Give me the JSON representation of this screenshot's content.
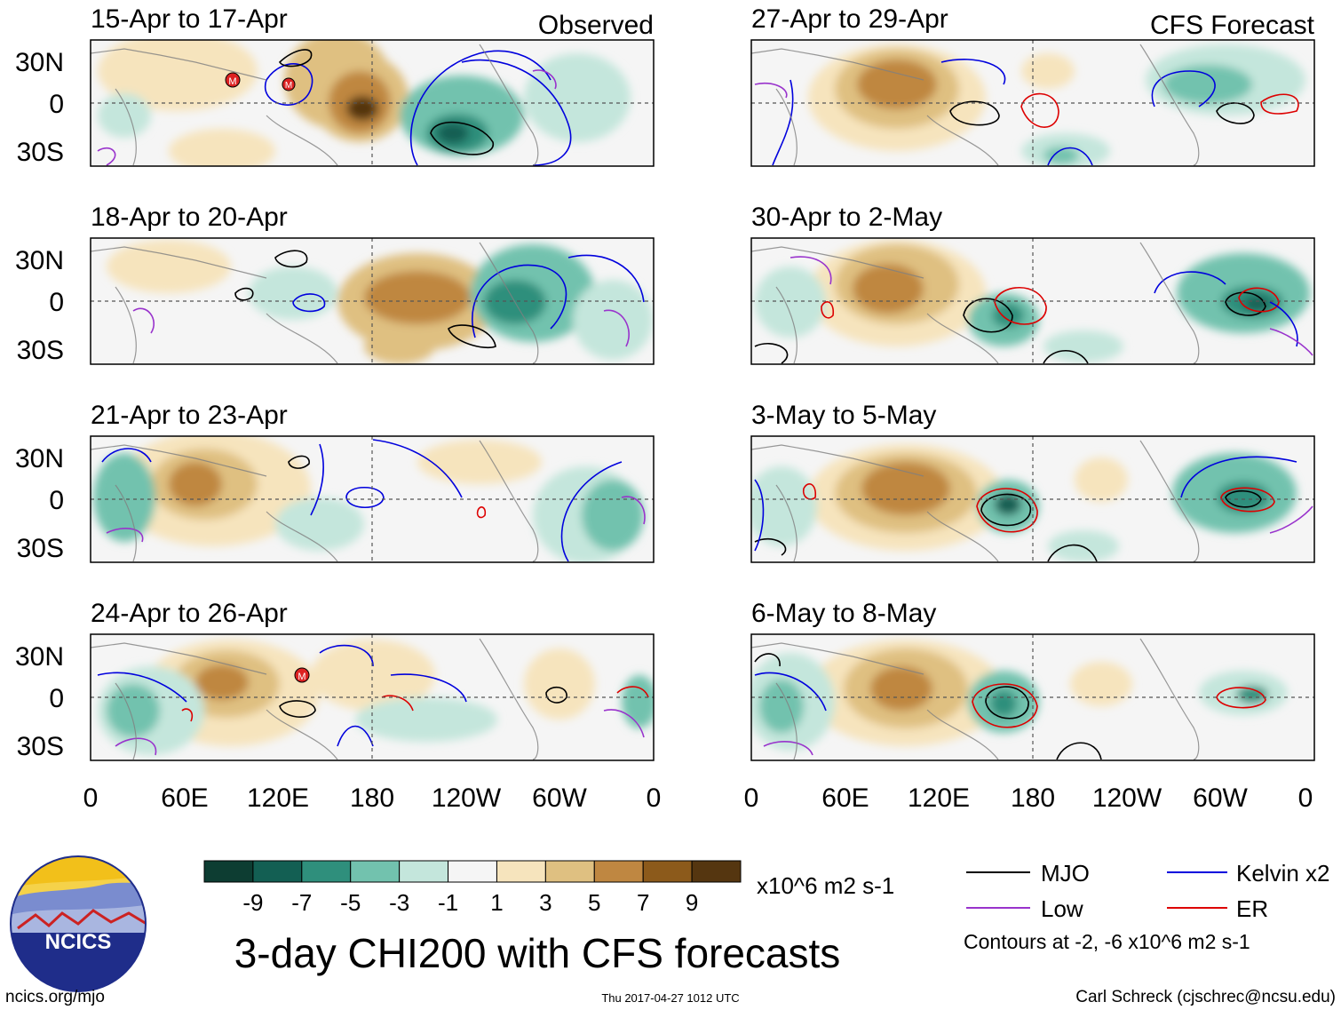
{
  "panels": [
    {
      "title": "15-Apr to 17-Apr",
      "tag": "Observed"
    },
    {
      "title": "27-Apr to 29-Apr",
      "tag": "CFS Forecast"
    },
    {
      "title": "18-Apr to 20-Apr",
      "tag": ""
    },
    {
      "title": "30-Apr to 2-May",
      "tag": ""
    },
    {
      "title": "21-Apr to 23-Apr",
      "tag": ""
    },
    {
      "title": "3-May to 5-May",
      "tag": ""
    },
    {
      "title": "24-Apr to 26-Apr",
      "tag": ""
    },
    {
      "title": "6-May to 8-May",
      "tag": ""
    }
  ],
  "lat_ticks": [
    "30N",
    "0",
    "30S"
  ],
  "lon_ticks": [
    "0",
    "60E",
    "120E",
    "180",
    "120W",
    "60W",
    "0"
  ],
  "colorbar": {
    "colors": [
      "#0d3d32",
      "#135f53",
      "#2f8f7c",
      "#72c2ae",
      "#c4e6dc",
      "#f5f5f5",
      "#f6e4bd",
      "#dfc081",
      "#bf8741",
      "#8c5a1b",
      "#553610"
    ],
    "labels": [
      "-9",
      "-7",
      "-5",
      "-3",
      "-1",
      "1",
      "3",
      "5",
      "7",
      "9"
    ],
    "units": "x10^6 m2 s-1"
  },
  "legend": {
    "items": [
      {
        "label": "MJO",
        "color": "#000000"
      },
      {
        "label": "Kelvin x2",
        "color": "#0000dd"
      },
      {
        "label": "Low",
        "color": "#9933cc"
      },
      {
        "label": "ER",
        "color": "#dd0000"
      }
    ],
    "contours_note": "Contours at -2, -6 x10^6 m2 s-1"
  },
  "title": "3-day CHI200 with CFS forecasts",
  "logo_text": "NCICS",
  "footer": {
    "url": "ncics.org/mjo",
    "timestamp": "Thu 2017-04-27 1012 UTC",
    "author": "Carl Schreck (cjschrec@ncsu.edu)"
  },
  "storm_marker": "M"
}
